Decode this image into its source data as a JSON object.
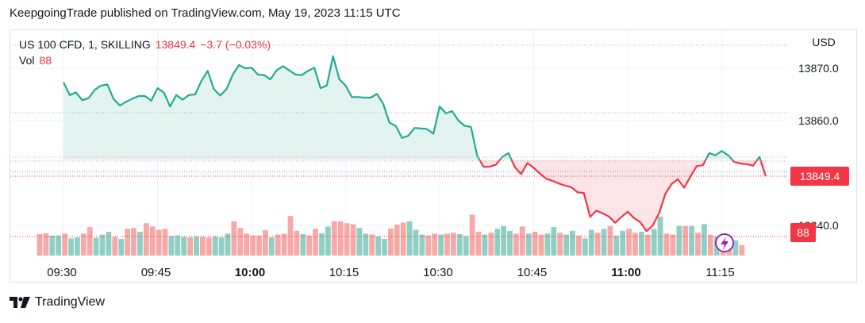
{
  "header": {
    "published_by": "KeepgoingTrade published on TradingView.com, May 19, 2023 11:15 UTC"
  },
  "legend": {
    "symbol": "US 100 CFD, 1, SKILLING",
    "last_price": "13849.4",
    "change": "−3.7 (−0.03%)",
    "volume_label": "Vol",
    "volume_value": "88"
  },
  "footer": {
    "brand": "TradingView"
  },
  "colors": {
    "up": "#22ab94",
    "down": "#f23645",
    "up_fill": "#e3f3ef",
    "down_fill": "#fde4e6",
    "vol_up": "#8fcfc4",
    "vol_down": "#f7a9a7",
    "label_bg": "#f23645"
  },
  "chart_data": {
    "type": "line",
    "title": "",
    "currency": "USD",
    "y_axis_ticks": [
      "13870.0",
      "13860.0",
      "13840.0"
    ],
    "y_axis_tick_values": [
      13870,
      13860,
      13840
    ],
    "x_axis_ticks": [
      "09:30",
      "09:45",
      "10:00",
      "10:15",
      "10:30",
      "10:45",
      "11:00",
      "11:15"
    ],
    "x_axis_tick_minutes": [
      570,
      585,
      600,
      615,
      630,
      645,
      660,
      675
    ],
    "bold_ticks": [
      "10:00",
      "11:00"
    ],
    "last_value_label": "13849.4",
    "volume_label": "88",
    "baseline": 13852.5,
    "ylim": [
      13838,
      13875
    ],
    "series": [
      {
        "start_minute": 570,
        "values": [
          13867.3,
          13864.9,
          13865.4,
          13863.9,
          13864.3,
          13865.9,
          13866.7,
          13866.9,
          13864.1,
          13862.9,
          13863.6,
          13864.2,
          13864.7,
          13864.7,
          13863.8,
          13866.2,
          13865.4,
          13862.7,
          13864.9,
          13864.0,
          13864.9,
          13865.0,
          13867.6,
          13869.5,
          13866.0,
          13864.8,
          13866.0,
          13868.8,
          13870.6,
          13870.0,
          13870.1,
          13868.8,
          13868.7,
          13867.9,
          13869.6,
          13870.4,
          13869.6,
          13868.8,
          13868.7,
          13869.5,
          13870.1,
          13866.2,
          13866.7,
          13872.3,
          13867.9,
          13866.7,
          13864.5,
          13864.5,
          13864.4,
          13864.4,
          13865.1,
          13863.2,
          13859.6,
          13859.0,
          13856.7,
          13857.1,
          13858.6,
          13858.5,
          13858.4,
          13857.5,
          13862.7,
          13861.4,
          13861.8,
          13860.0,
          13859.0,
          13858.8,
          13853.2,
          13851.2,
          13851.2,
          13851.6,
          13853.1,
          13853.8,
          13851.1,
          13849.8,
          13851.9,
          13851.0,
          13849.9,
          13848.9,
          13848.5,
          13848.0,
          13847.6,
          13847.3,
          13846.3,
          13846.2,
          13841.6,
          13842.8,
          13842.3,
          13841.7,
          13840.5,
          13841.6,
          13842.6,
          13841.4,
          13840.6,
          13838.9,
          13840.0,
          13842.3,
          13846.0,
          13847.9,
          13848.8,
          13847.2,
          13849.3,
          13851.3,
          13851.5,
          13853.8,
          13853.4,
          13854.2,
          13853.4,
          13852.1,
          13851.8,
          13851.7,
          13851.4,
          13853.1,
          13849.4
        ]
      }
    ],
    "volume": [
      {
        "v": 0.45,
        "up": false
      },
      {
        "v": 0.47,
        "up": false
      },
      {
        "v": 0.42,
        "up": true
      },
      {
        "v": 0.42,
        "up": true
      },
      {
        "v": 0.46,
        "up": false
      },
      {
        "v": 0.36,
        "up": true
      },
      {
        "v": 0.38,
        "up": true
      },
      {
        "v": 0.46,
        "up": false
      },
      {
        "v": 0.6,
        "up": false
      },
      {
        "v": 0.37,
        "up": true
      },
      {
        "v": 0.44,
        "up": true
      },
      {
        "v": 0.5,
        "up": true
      },
      {
        "v": 0.39,
        "up": false
      },
      {
        "v": 0.35,
        "up": true
      },
      {
        "v": 0.56,
        "up": false
      },
      {
        "v": 0.58,
        "up": false
      },
      {
        "v": 0.5,
        "up": true
      },
      {
        "v": 0.68,
        "up": false
      },
      {
        "v": 0.61,
        "up": false
      },
      {
        "v": 0.54,
        "up": false
      },
      {
        "v": 0.56,
        "up": false
      },
      {
        "v": 0.41,
        "up": true
      },
      {
        "v": 0.42,
        "up": true
      },
      {
        "v": 0.39,
        "up": true
      },
      {
        "v": 0.38,
        "up": false
      },
      {
        "v": 0.4,
        "up": true
      },
      {
        "v": 0.39,
        "up": false
      },
      {
        "v": 0.38,
        "up": false
      },
      {
        "v": 0.4,
        "up": true
      },
      {
        "v": 0.38,
        "up": true
      },
      {
        "v": 0.46,
        "up": true
      },
      {
        "v": 0.72,
        "up": false
      },
      {
        "v": 0.58,
        "up": false
      },
      {
        "v": 0.46,
        "up": false
      },
      {
        "v": 0.42,
        "up": false
      },
      {
        "v": 0.42,
        "up": false
      },
      {
        "v": 0.53,
        "up": false
      },
      {
        "v": 0.38,
        "up": true
      },
      {
        "v": 0.44,
        "up": false
      },
      {
        "v": 0.46,
        "up": false
      },
      {
        "v": 0.83,
        "up": false
      },
      {
        "v": 0.52,
        "up": false
      },
      {
        "v": 0.45,
        "up": true
      },
      {
        "v": 0.42,
        "up": false
      },
      {
        "v": 0.56,
        "up": false
      },
      {
        "v": 0.47,
        "up": true
      },
      {
        "v": 0.61,
        "up": true
      },
      {
        "v": 0.72,
        "up": false
      },
      {
        "v": 0.72,
        "up": false
      },
      {
        "v": 0.68,
        "up": false
      },
      {
        "v": 0.66,
        "up": false
      },
      {
        "v": 0.58,
        "up": true
      },
      {
        "v": 0.46,
        "up": true
      },
      {
        "v": 0.44,
        "up": false
      },
      {
        "v": 0.4,
        "up": true
      },
      {
        "v": 0.35,
        "up": true
      },
      {
        "v": 0.57,
        "up": false
      },
      {
        "v": 0.65,
        "up": false
      },
      {
        "v": 0.69,
        "up": false
      },
      {
        "v": 0.72,
        "up": true
      },
      {
        "v": 0.54,
        "up": true
      },
      {
        "v": 0.44,
        "up": true
      },
      {
        "v": 0.42,
        "up": false
      },
      {
        "v": 0.46,
        "up": false
      },
      {
        "v": 0.44,
        "up": true
      },
      {
        "v": 0.46,
        "up": false
      },
      {
        "v": 0.48,
        "up": false
      },
      {
        "v": 0.45,
        "up": true
      },
      {
        "v": 0.41,
        "up": true
      },
      {
        "v": 0.86,
        "up": false
      },
      {
        "v": 0.5,
        "up": false
      },
      {
        "v": 0.44,
        "up": true
      },
      {
        "v": 0.48,
        "up": false
      },
      {
        "v": 0.56,
        "up": true
      },
      {
        "v": 0.62,
        "up": true
      },
      {
        "v": 0.52,
        "up": true
      },
      {
        "v": 0.46,
        "up": false
      },
      {
        "v": 0.61,
        "up": false
      },
      {
        "v": 0.46,
        "up": true
      },
      {
        "v": 0.5,
        "up": false
      },
      {
        "v": 0.44,
        "up": false
      },
      {
        "v": 0.46,
        "up": true
      },
      {
        "v": 0.6,
        "up": true
      },
      {
        "v": 0.48,
        "up": false
      },
      {
        "v": 0.44,
        "up": true
      },
      {
        "v": 0.52,
        "up": true
      },
      {
        "v": 0.42,
        "up": false
      },
      {
        "v": 0.36,
        "up": true
      },
      {
        "v": 0.54,
        "up": true
      },
      {
        "v": 0.48,
        "up": false
      },
      {
        "v": 0.56,
        "up": true
      },
      {
        "v": 0.62,
        "up": false
      },
      {
        "v": 0.42,
        "up": true
      },
      {
        "v": 0.52,
        "up": true
      },
      {
        "v": 0.56,
        "up": false
      },
      {
        "v": 0.48,
        "up": false
      },
      {
        "v": 0.5,
        "up": true
      },
      {
        "v": 0.44,
        "up": false
      },
      {
        "v": 0.56,
        "up": true
      },
      {
        "v": 0.82,
        "up": true
      },
      {
        "v": 0.46,
        "up": false
      },
      {
        "v": 0.44,
        "up": false
      },
      {
        "v": 0.62,
        "up": true
      },
      {
        "v": 0.62,
        "up": false
      },
      {
        "v": 0.62,
        "up": true
      },
      {
        "v": 0.48,
        "up": false
      },
      {
        "v": 0.66,
        "up": true
      },
      {
        "v": 0.44,
        "up": false
      },
      {
        "v": 0.4,
        "up": true
      },
      {
        "v": 0.36,
        "up": false
      },
      {
        "v": 0.42,
        "up": false
      },
      {
        "v": 0.32,
        "up": true
      },
      {
        "v": 0.22,
        "up": false
      }
    ]
  }
}
